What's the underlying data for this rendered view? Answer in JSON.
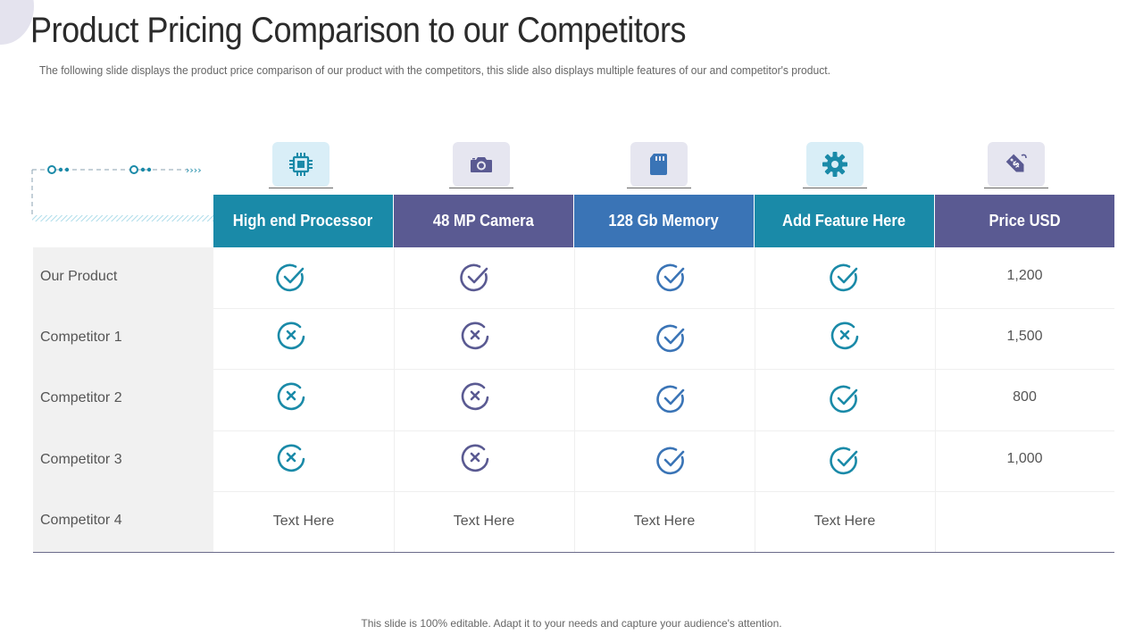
{
  "title": "Product Pricing Comparison to our Competitors",
  "subtitle": "The following slide displays the product price comparison of our product with the competitors, this slide also displays multiple features of our and competitor's product.",
  "footer": "This slide is 100% editable. Adapt it to your needs and capture your audience's attention.",
  "colors": {
    "teal": "#1a8aa8",
    "purple": "#5a5a92",
    "blue": "#3a74b6",
    "icon_bg_teal": "#d9eef7",
    "icon_bg_purple": "#e6e6f0"
  },
  "columns": [
    {
      "label": "High end Processor",
      "icon": "processor-icon"
    },
    {
      "label": "48 MP Camera",
      "icon": "camera-icon"
    },
    {
      "label": "128 Gb Memory",
      "icon": "memory-card-icon"
    },
    {
      "label": "Add Feature Here",
      "icon": "gear-icon"
    },
    {
      "label": "Price USD",
      "icon": "price-tag-icon"
    }
  ],
  "rows": [
    {
      "label": "Our Product",
      "cells": [
        "check",
        "check",
        "check",
        "check"
      ],
      "price": "1,200"
    },
    {
      "label": "Competitor 1",
      "cells": [
        "cross",
        "cross",
        "check",
        "cross"
      ],
      "price": "1,500"
    },
    {
      "label": "Competitor 2",
      "cells": [
        "cross",
        "cross",
        "check",
        "check"
      ],
      "price": "800"
    },
    {
      "label": "Competitor 3",
      "cells": [
        "cross",
        "cross",
        "check",
        "check"
      ],
      "price": "1,000"
    },
    {
      "label": "Competitor 4",
      "cells": [
        "Text Here",
        "Text Here",
        "Text Here",
        "Text Here"
      ],
      "price": ""
    }
  ]
}
